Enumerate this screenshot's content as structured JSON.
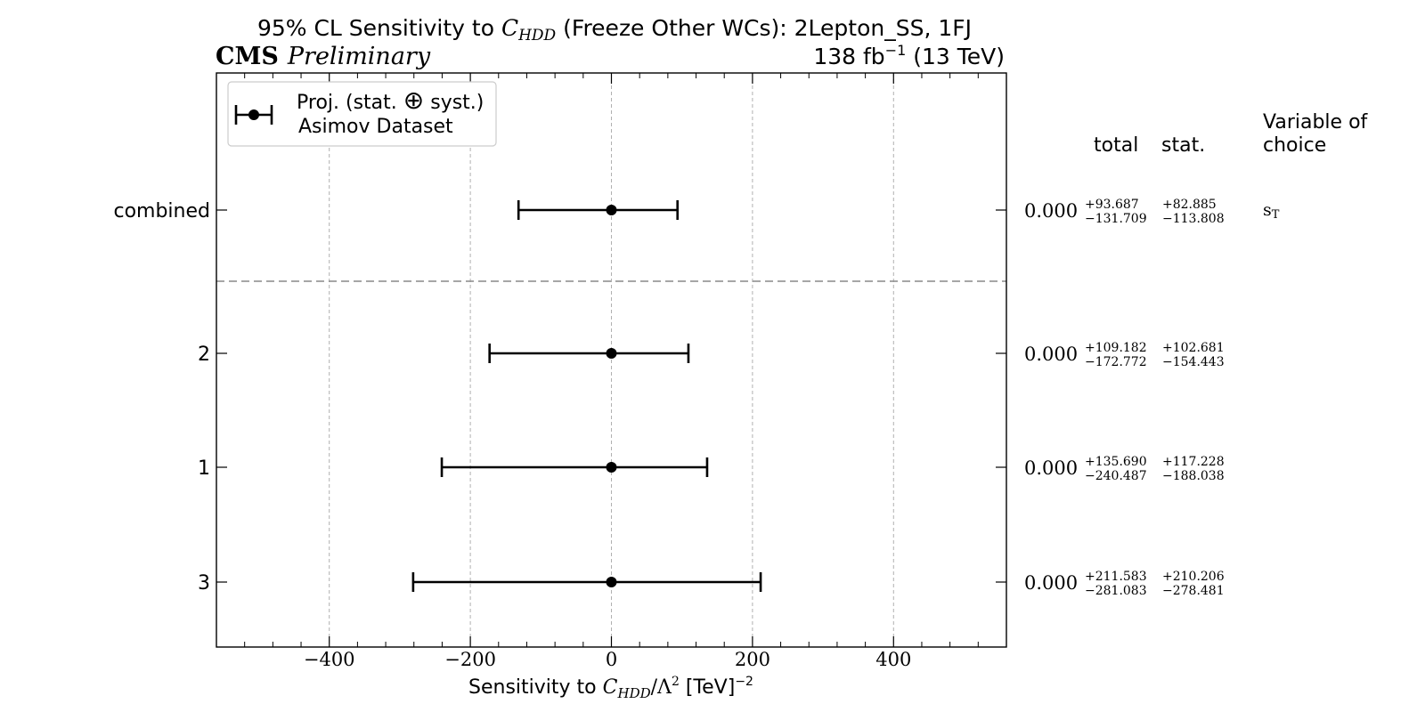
{
  "chart_data": {
    "type": "errorbar",
    "title": {
      "prefix": "95% CL Sensitivity to ",
      "coef_base": "C",
      "coef_sub": "HDD",
      "suffix": " (Freeze Other WCs): 2Lepton_SS, 1FJ"
    },
    "experiment_label": "CMS",
    "status_label": "Preliminary",
    "luminosity": {
      "value": "138 fb",
      "exponent": "−1",
      "energy": " (13 TeV)"
    },
    "xlabel": {
      "prefix": "Sensitivity to ",
      "coef_base": "C",
      "coef_sub": "HDD",
      "lambda": "/Λ",
      "lambda_exp": "2",
      "unit": " [TeV]",
      "unit_exp": "−2"
    },
    "xlim": [
      -560,
      560
    ],
    "xticks": [
      -400,
      -200,
      0,
      200,
      400
    ],
    "xtick_labels": [
      "−400",
      "−200",
      "0",
      "200",
      "400"
    ],
    "grid": true,
    "legend": {
      "position": "top-left",
      "line1_prefix": "Proj. (stat. ",
      "line1_symbol": "⊕",
      "line1_suffix": " syst.)",
      "line2": "Asimov Dataset"
    },
    "table_headers": {
      "total": "total",
      "stat": "stat.",
      "variable_line1": "Variable of",
      "variable_line2": "choice"
    },
    "rows": [
      {
        "label": "combined",
        "central": 0.0,
        "central_label": "0.000",
        "total_plus": 93.687,
        "total_minus": 131.709,
        "total_plus_label": "+93.687",
        "total_minus_label": "−131.709",
        "stat_plus_label": "+82.885",
        "stat_minus_label": "−113.808",
        "variable": "s",
        "variable_sub": "T"
      },
      {
        "label": "2",
        "central": 0.0,
        "central_label": "0.000",
        "total_plus": 109.182,
        "total_minus": 172.772,
        "total_plus_label": "+109.182",
        "total_minus_label": "−172.772",
        "stat_plus_label": "+102.681",
        "stat_minus_label": "−154.443",
        "variable": "",
        "variable_sub": ""
      },
      {
        "label": "1",
        "central": 0.0,
        "central_label": "0.000",
        "total_plus": 135.69,
        "total_minus": 240.487,
        "total_plus_label": "+135.690",
        "total_minus_label": "−240.487",
        "stat_plus_label": "+117.228",
        "stat_minus_label": "−188.038",
        "variable": "",
        "variable_sub": ""
      },
      {
        "label": "3",
        "central": 0.0,
        "central_label": "0.000",
        "total_plus": 211.583,
        "total_minus": 281.083,
        "total_plus_label": "+211.583",
        "total_minus_label": "−281.083",
        "stat_plus_label": "+210.206",
        "stat_minus_label": "−278.481",
        "variable": "",
        "variable_sub": ""
      }
    ],
    "colors": {
      "marker": "#000000",
      "grid": "#b0b0b0",
      "separator": "#888888"
    }
  }
}
